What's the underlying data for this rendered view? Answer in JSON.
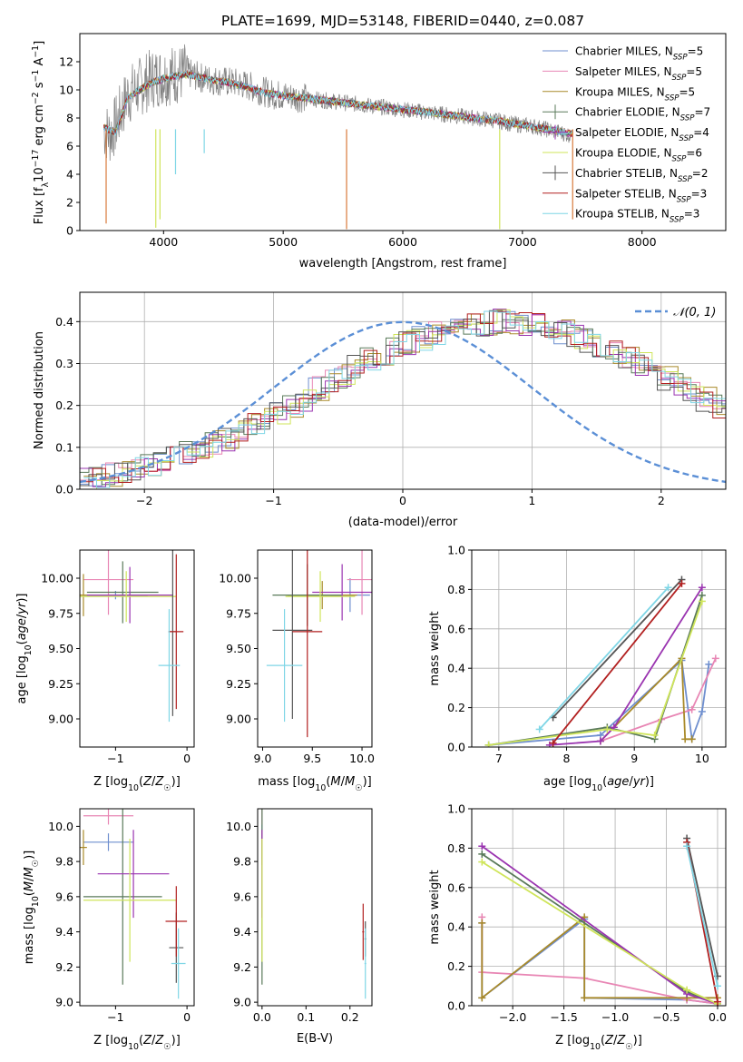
{
  "colors": [
    "#6f8fcf",
    "#e886b4",
    "#a98a2a",
    "#5a7a5a",
    "#9a34b0",
    "#cfe55a",
    "#555555",
    "#b22020",
    "#7fd6e6"
  ],
  "chart_data": [
    {
      "id": "spectrum",
      "type": "line",
      "title": "PLATE=1699, MJD=53148, FIBERID=0440, z=0.087",
      "xlabel": "wavelength [Angstrom, rest frame]",
      "ylabel": "Flux [f_λ10^-17 erg cm^-2 s^-1 A^-1]",
      "xlim": [
        3300,
        8700
      ],
      "ylim": [
        0,
        14
      ],
      "xticks": [
        4000,
        5000,
        6000,
        7000,
        8000
      ],
      "yticks": [
        0,
        2,
        4,
        6,
        8,
        10,
        12
      ],
      "grid": false,
      "legend": "top-right",
      "data_series": {
        "name": "data",
        "color": "#808080",
        "x": [
          3500,
          3550,
          3600,
          3700,
          3800,
          3900,
          4000,
          4100,
          4200,
          4300,
          4400,
          4500,
          4600,
          4700,
          4800,
          4900,
          5000,
          5100,
          5200,
          5300,
          5400,
          5500,
          5600,
          5700,
          5800,
          5900,
          6000,
          6100,
          6200,
          6300,
          6400,
          6500,
          6600,
          6700,
          6800,
          6900,
          7000,
          7100,
          7200,
          7300,
          7400
        ],
        "y": [
          7.2,
          6.8,
          7.5,
          9.6,
          10.2,
          10.8,
          11.0,
          11.1,
          11.2,
          10.9,
          10.7,
          10.6,
          10.5,
          10.3,
          10.0,
          9.7,
          9.6,
          9.5,
          9.4,
          9.3,
          9.2,
          9.1,
          9.0,
          8.9,
          8.8,
          8.7,
          8.6,
          8.5,
          8.4,
          8.3,
          8.2,
          8.1,
          8.0,
          7.9,
          7.8,
          7.6,
          7.5,
          7.4,
          7.2,
          7.0,
          6.8
        ]
      },
      "series": [
        {
          "name": "Chabrier MILES, N_SSP=5",
          "color": "#6f8fcf"
        },
        {
          "name": "Salpeter MILES, N_SSP=5",
          "color": "#e886b4"
        },
        {
          "name": "Kroupa MILES, N_SSP=5",
          "color": "#a98a2a"
        },
        {
          "name": "Chabrier ELODIE, N_SSP=7",
          "color": "#5a7a5a"
        },
        {
          "name": "Salpeter ELODIE, N_SSP=4",
          "color": "#9a34b0"
        },
        {
          "name": "Kroupa ELODIE, N_SSP=6",
          "color": "#cfe55a"
        },
        {
          "name": "Chabrier STELIB, N_SSP=2",
          "color": "#555555"
        },
        {
          "name": "Salpeter STELIB, N_SSP=3",
          "color": "#b22020"
        },
        {
          "name": "Kroupa STELIB, N_SSP=3",
          "color": "#7fd6e6"
        }
      ],
      "model_x": [
        3500,
        3600,
        3700,
        3800,
        3900,
        4000,
        4100,
        4200,
        4300,
        4400,
        4500,
        4600,
        4700,
        4800,
        4900,
        5000,
        5200,
        5400,
        5600,
        5800,
        6000,
        6200,
        6400,
        6600,
        6800,
        7000,
        7200,
        7400,
        8000,
        8400
      ],
      "model_y": [
        7.3,
        7.0,
        9.4,
        10.0,
        10.5,
        10.8,
        11.0,
        11.1,
        10.9,
        10.7,
        10.6,
        10.4,
        10.2,
        9.9,
        9.7,
        9.6,
        9.4,
        9.2,
        9.0,
        8.8,
        8.6,
        8.4,
        8.2,
        8.0,
        7.8,
        7.5,
        7.2,
        6.9,
        6.6,
        6.2
      ]
    },
    {
      "id": "residual-hist",
      "type": "line",
      "xlabel": "(data-model)/error",
      "ylabel": "Normed distribution",
      "xlim": [
        -2.5,
        2.5
      ],
      "ylim": [
        0,
        0.47
      ],
      "xticks": [
        -2,
        -1,
        0,
        1,
        2
      ],
      "yticks": [
        0.0,
        0.1,
        0.2,
        0.3,
        0.4
      ],
      "grid": true,
      "legend": "top-right",
      "normal_label": "𝒩(0, 1)",
      "bin_width": 0.1,
      "bin_start": -2.5,
      "hist_heights": [
        0.028,
        0.03,
        0.035,
        0.04,
        0.05,
        0.055,
        0.065,
        0.075,
        0.085,
        0.1,
        0.11,
        0.12,
        0.14,
        0.155,
        0.17,
        0.185,
        0.2,
        0.215,
        0.24,
        0.255,
        0.27,
        0.29,
        0.31,
        0.32,
        0.34,
        0.35,
        0.36,
        0.37,
        0.38,
        0.385,
        0.39,
        0.395,
        0.4,
        0.4,
        0.395,
        0.39,
        0.385,
        0.375,
        0.365,
        0.355,
        0.34,
        0.33,
        0.31,
        0.3,
        0.28,
        0.265,
        0.25,
        0.235,
        0.215,
        0.2,
        0.18,
        0.165,
        0.15,
        0.135,
        0.12,
        0.105,
        0.095,
        0.08,
        0.07,
        0.06,
        0.05,
        0.045,
        0.04,
        0.035,
        0.03,
        0.027,
        0.025,
        0.025,
        0.025,
        0.025
      ]
    },
    {
      "id": "age-vs-Z",
      "type": "scatter",
      "xlabel": "Z [log10(Z/Z☉)]",
      "ylabel": "age  [log10(age/yr)]",
      "xlim": [
        -1.5,
        0.1
      ],
      "ylim": [
        8.8,
        10.2
      ],
      "xticks": [
        -1,
        0
      ],
      "yticks": [
        9.0,
        9.25,
        9.5,
        9.75,
        10.0
      ],
      "points": [
        {
          "x": -1.0,
          "y": 9.88,
          "xerr": 0.45,
          "yerr": 0.03
        },
        {
          "x": -1.1,
          "y": 9.99,
          "xerr": 0.35,
          "yerr": 0.25
        },
        {
          "x": -1.45,
          "y": 9.88,
          "xerr": 0.05,
          "yerr": 0.15
        },
        {
          "x": -0.9,
          "y": 9.9,
          "xerr": 0.5,
          "yerr": 0.22
        },
        {
          "x": -0.8,
          "y": 9.88,
          "xerr": 0.6,
          "yerr": 0.2
        },
        {
          "x": -0.85,
          "y": 9.87,
          "xerr": 0.7,
          "yerr": 0.18
        },
        {
          "x": -0.2,
          "y": 9.62,
          "xerr": 0.06,
          "yerr": 0.6
        },
        {
          "x": -0.15,
          "y": 9.62,
          "xerr": 0.1,
          "yerr": 0.55
        },
        {
          "x": -0.25,
          "y": 9.38,
          "xerr": 0.15,
          "yerr": 0.4
        }
      ]
    },
    {
      "id": "age-vs-mass",
      "type": "scatter",
      "xlabel": "mass [log10(M/M☉)]",
      "ylabel": "",
      "xlim": [
        8.95,
        10.1
      ],
      "ylim": [
        8.8,
        10.2
      ],
      "xticks": [
        9.0,
        9.5,
        10.0
      ],
      "yticks": [
        9.0,
        9.25,
        9.5,
        9.75,
        10.0
      ],
      "points": [
        {
          "x": 9.88,
          "y": 9.88,
          "xerr": 0.2,
          "yerr": 0.12
        },
        {
          "x": 10.0,
          "y": 9.99,
          "xerr": 0.15,
          "yerr": 0.25
        },
        {
          "x": 9.6,
          "y": 9.88,
          "xerr": 0.35,
          "yerr": 0.1
        },
        {
          "x": 9.45,
          "y": 9.88,
          "xerr": 0.35,
          "yerr": 0.22
        },
        {
          "x": 9.8,
          "y": 9.9,
          "xerr": 0.3,
          "yerr": 0.2
        },
        {
          "x": 9.58,
          "y": 9.87,
          "xerr": 0.35,
          "yerr": 0.18
        },
        {
          "x": 9.3,
          "y": 9.63,
          "xerr": 0.2,
          "yerr": 0.63
        },
        {
          "x": 9.45,
          "y": 9.62,
          "xerr": 0.15,
          "yerr": 0.75
        },
        {
          "x": 9.22,
          "y": 9.38,
          "xerr": 0.18,
          "yerr": 0.4
        }
      ]
    },
    {
      "id": "massweight-vs-age",
      "type": "line",
      "xlabel": "age  [log10(age/yr)]",
      "ylabel": "mass weight",
      "xlim": [
        6.6,
        10.35
      ],
      "ylim": [
        0,
        1.0
      ],
      "xticks": [
        7,
        8,
        9,
        10
      ],
      "yticks": [
        0.0,
        0.2,
        0.4,
        0.6,
        0.8,
        1.0
      ],
      "grid": true,
      "series": [
        {
          "x": [
            6.85,
            8.5,
            9.7,
            9.85,
            10.0,
            10.1
          ],
          "y": [
            0.01,
            0.06,
            0.44,
            0.04,
            0.18,
            0.42
          ]
        },
        {
          "x": [
            8.5,
            9.4,
            9.85,
            10.2
          ],
          "y": [
            0.03,
            0.14,
            0.19,
            0.45
          ]
        },
        {
          "x": [
            8.5,
            9.7,
            9.75,
            9.85
          ],
          "y": [
            0.03,
            0.45,
            0.04,
            0.04
          ]
        },
        {
          "x": [
            6.85,
            8.6,
            9.3,
            10.0
          ],
          "y": [
            0.01,
            0.1,
            0.04,
            0.77
          ]
        },
        {
          "x": [
            7.75,
            8.5,
            8.7,
            10.0
          ],
          "y": [
            0.01,
            0.03,
            0.1,
            0.81
          ]
        },
        {
          "x": [
            6.85,
            8.6,
            9.3,
            10.0
          ],
          "y": [
            0.01,
            0.09,
            0.06,
            0.74
          ]
        },
        {
          "x": [
            7.8,
            9.7
          ],
          "y": [
            0.15,
            0.85
          ]
        },
        {
          "x": [
            7.8,
            9.7
          ],
          "y": [
            0.02,
            0.83
          ]
        },
        {
          "x": [
            7.6,
            9.5
          ],
          "y": [
            0.09,
            0.81
          ]
        }
      ]
    },
    {
      "id": "mass-vs-Z",
      "type": "scatter",
      "xlabel": "Z [log10(Z/Z☉)]",
      "ylabel": "mass [log10(M/M☉)]",
      "xlim": [
        -1.5,
        0.1
      ],
      "ylim": [
        8.98,
        10.1
      ],
      "xticks": [
        -1,
        0
      ],
      "yticks": [
        9.0,
        9.2,
        9.4,
        9.6,
        9.8,
        10.0
      ],
      "points": [
        {
          "x": -1.1,
          "y": 9.91,
          "xerr": 0.35,
          "yerr": 0.05
        },
        {
          "x": -1.1,
          "y": 10.06,
          "xerr": 0.35,
          "yerr": 0.05
        },
        {
          "x": -1.45,
          "y": 9.88,
          "xerr": 0.05,
          "yerr": 0.1
        },
        {
          "x": -0.9,
          "y": 9.6,
          "xerr": 0.55,
          "yerr": 0.5
        },
        {
          "x": -0.75,
          "y": 9.73,
          "xerr": 0.5,
          "yerr": 0.25
        },
        {
          "x": -0.8,
          "y": 9.58,
          "xerr": 0.65,
          "yerr": 0.35
        },
        {
          "x": -0.15,
          "y": 9.31,
          "xerr": 0.1,
          "yerr": 0.2
        },
        {
          "x": -0.15,
          "y": 9.46,
          "xerr": 0.15,
          "yerr": 0.2
        },
        {
          "x": -0.12,
          "y": 9.22,
          "xerr": 0.1,
          "yerr": 0.2
        }
      ]
    },
    {
      "id": "mass-vs-EBV",
      "type": "scatter",
      "xlabel": "E(B-V)",
      "ylabel": "",
      "xlim": [
        -0.01,
        0.25
      ],
      "ylim": [
        8.98,
        10.1
      ],
      "xticks": [
        0.0,
        0.1,
        0.2
      ],
      "yticks": [
        9.0,
        9.2,
        9.4,
        9.6,
        9.8,
        10.0
      ],
      "points": [
        {
          "x": 0.0,
          "y": 9.91,
          "xerr": 0.0,
          "yerr": 0.1
        },
        {
          "x": 0.0,
          "y": 10.06,
          "xerr": 0.0,
          "yerr": 0.05
        },
        {
          "x": 0.0,
          "y": 9.88,
          "xerr": 0.0,
          "yerr": 0.1
        },
        {
          "x": 0.0,
          "y": 9.6,
          "xerr": 0.0,
          "yerr": 0.5
        },
        {
          "x": 0.0,
          "y": 9.73,
          "xerr": 0.0,
          "yerr": 0.25
        },
        {
          "x": 0.0,
          "y": 9.58,
          "xerr": 0.0,
          "yerr": 0.35
        },
        {
          "x": 0.235,
          "y": 9.36,
          "xerr": 0.002,
          "yerr": 0.1
        },
        {
          "x": 0.23,
          "y": 9.4,
          "xerr": 0.002,
          "yerr": 0.16
        },
        {
          "x": 0.235,
          "y": 9.22,
          "xerr": 0.002,
          "yerr": 0.2
        }
      ]
    },
    {
      "id": "massweight-vs-Z",
      "type": "line",
      "xlabel": "Z [log10(Z/Z☉)]",
      "ylabel": "mass weight",
      "xlim": [
        -2.4,
        0.08
      ],
      "ylim": [
        0,
        1.0
      ],
      "xticks": [
        -2.0,
        -1.5,
        -1.0,
        -0.5,
        0.0
      ],
      "yticks": [
        0.0,
        0.2,
        0.4,
        0.6,
        0.8,
        1.0
      ],
      "grid": true,
      "series": [
        {
          "x": [
            -2.3,
            -2.3,
            -1.3,
            -1.3,
            -0.3,
            0.0
          ],
          "y": [
            0.42,
            0.04,
            0.44,
            0.04,
            0.03,
            0.01
          ]
        },
        {
          "x": [
            -2.3,
            -2.3,
            -1.3,
            -0.3,
            0.0
          ],
          "y": [
            0.45,
            0.17,
            0.14,
            0.03,
            0.01
          ]
        },
        {
          "x": [
            -2.3,
            -2.3,
            -1.3,
            -1.3,
            -0.3,
            0.0
          ],
          "y": [
            0.42,
            0.04,
            0.45,
            0.04,
            0.04,
            0.04
          ]
        },
        {
          "x": [
            -2.3,
            -0.3,
            0.0
          ],
          "y": [
            0.77,
            0.07,
            0.01
          ]
        },
        {
          "x": [
            -2.3,
            -0.3,
            0.0
          ],
          "y": [
            0.81,
            0.06,
            0.01
          ]
        },
        {
          "x": [
            -2.3,
            -0.3,
            0.0
          ],
          "y": [
            0.73,
            0.08,
            0.01
          ]
        },
        {
          "x": [
            -0.3,
            0.0
          ],
          "y": [
            0.85,
            0.15
          ]
        },
        {
          "x": [
            -0.3,
            0.0
          ],
          "y": [
            0.83,
            0.02
          ]
        },
        {
          "x": [
            -0.3,
            0.0
          ],
          "y": [
            0.81,
            0.1
          ]
        }
      ]
    }
  ]
}
